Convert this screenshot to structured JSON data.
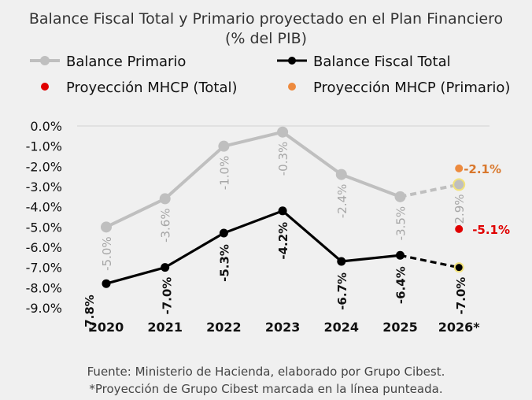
{
  "chart_data": {
    "type": "line",
    "title": "Balance Fiscal Total y Primario proyectado en el Plan Financiero",
    "subtitle": "(% del PIB)",
    "categories": [
      "2020",
      "2021",
      "2022",
      "2023",
      "2024",
      "2025",
      "2026*"
    ],
    "series": [
      {
        "name": "Balance Primario",
        "color": "#bfbfbf",
        "values": [
          -5.0,
          -3.6,
          -1.0,
          -0.3,
          -2.4,
          -3.5,
          -2.9
        ],
        "labels": [
          "-5.0%",
          "-3.6%",
          "-1.0%",
          "-0.3%",
          "-2.4%",
          "-3.5%",
          "-2.9%"
        ],
        "dashed_from": "2025"
      },
      {
        "name": "Balance Fiscal Total",
        "color": "#000000",
        "values": [
          -7.8,
          -7.0,
          -5.3,
          -4.2,
          -6.7,
          -6.4,
          -7.0
        ],
        "labels": [
          "-7.8%",
          "-7.0%",
          "-5.3%",
          "-4.2%",
          "-6.7%",
          "-6.4%",
          "-7.0%"
        ],
        "dashed_from": "2025"
      }
    ],
    "points": [
      {
        "name": "Proyección MHCP (Total)",
        "color": "#e00000",
        "x": "2026*",
        "value": -5.1,
        "label": "-5.1%"
      },
      {
        "name": "Proyección MHCP (Primario)",
        "color": "#ed8a3e",
        "x": "2026*",
        "value": -2.1,
        "label": "-2.1%"
      }
    ],
    "ylim": [
      -9,
      0
    ],
    "yticks": [
      "0.0%",
      "-1.0%",
      "-2.0%",
      "-3.0%",
      "-4.0%",
      "-5.0%",
      "-6.0%",
      "-7.0%",
      "-8.0%",
      "-9.0%"
    ],
    "grid": "zero line only",
    "legend_position": "top"
  },
  "footer": {
    "source": "Fuente: Ministerio de Hacienda, elaborado por Grupo Cibest.",
    "note": "*Proyección de Grupo Cibest marcada en la línea punteada."
  }
}
